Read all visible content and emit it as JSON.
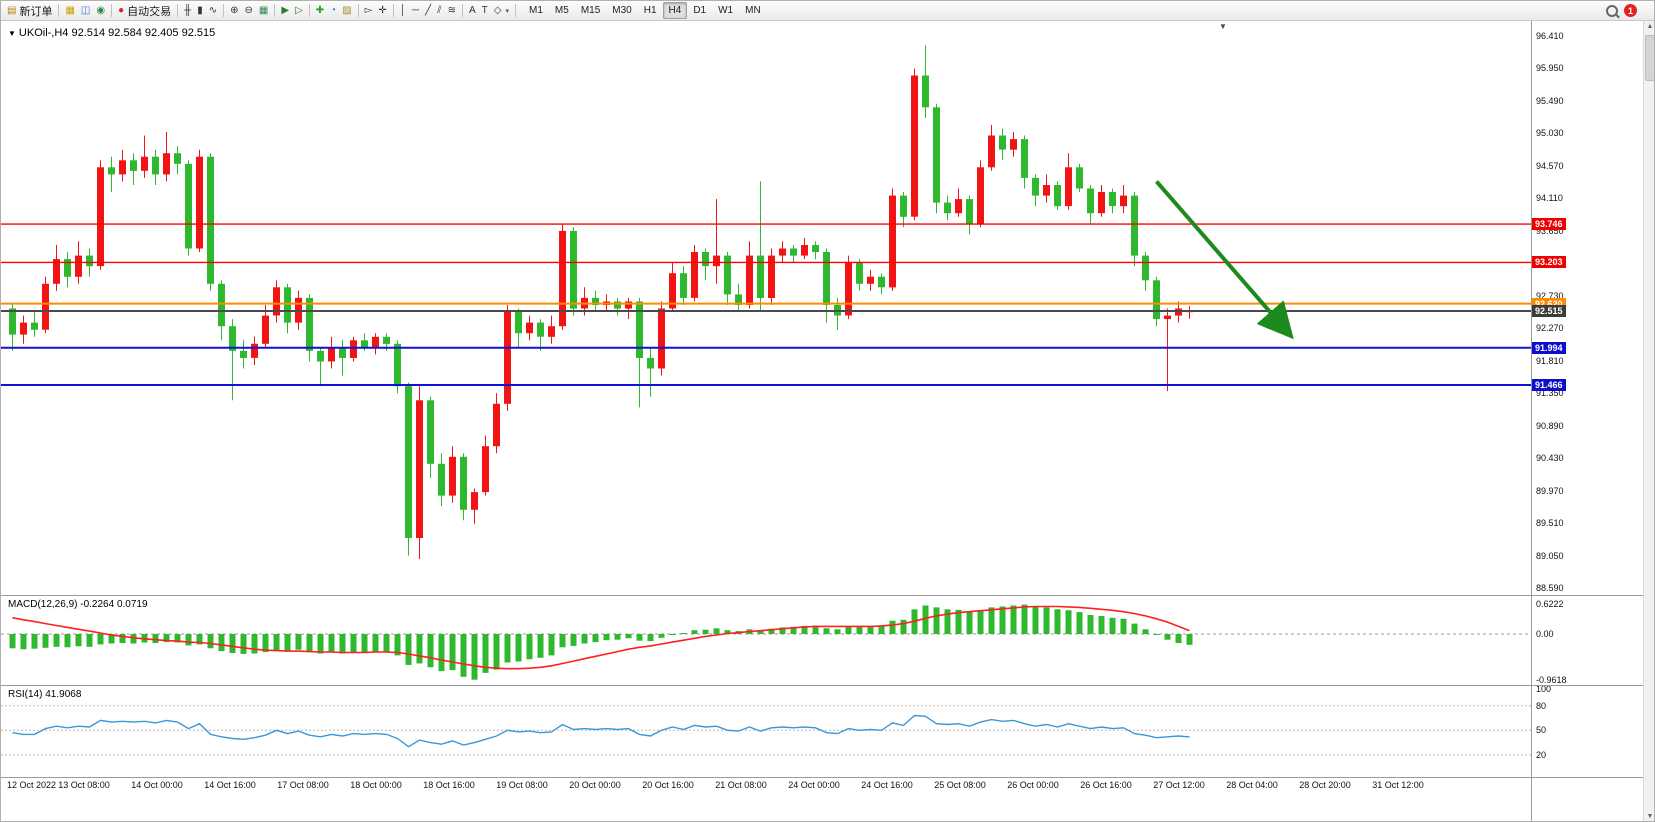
{
  "toolbar": {
    "groups": [
      {
        "name": "orders",
        "items": [
          {
            "name": "new-order",
            "glyph": "▤",
            "glyph_color": "#b8860b",
            "label": "新订单"
          }
        ]
      },
      {
        "name": "windows",
        "items": [
          {
            "name": "market-watch",
            "glyph": "▦",
            "glyph_color": "#c8a000"
          },
          {
            "name": "data-window",
            "glyph": "◫",
            "glyph_color": "#4477cc"
          },
          {
            "name": "navigator",
            "glyph": "◉",
            "glyph_color": "#2a8844"
          }
        ]
      },
      {
        "name": "autotrade",
        "items": [
          {
            "name": "autotrading",
            "glyph": "●",
            "glyph_color": "#dd2222",
            "label": "自动交易"
          }
        ]
      },
      {
        "name": "chart-types",
        "items": [
          {
            "name": "bar-chart-mode",
            "glyph": "╫",
            "glyph_color": "#333333"
          },
          {
            "name": "candlestick-mode",
            "glyph": "▮",
            "glyph_color": "#333333"
          },
          {
            "name": "line-chart-mode",
            "glyph": "∿",
            "glyph_color": "#333333"
          }
        ]
      },
      {
        "name": "zoom",
        "items": [
          {
            "name": "zoom-in",
            "glyph": "⊕",
            "glyph_color": "#333333"
          },
          {
            "name": "zoom-out",
            "glyph": "⊖",
            "glyph_color": "#333333"
          },
          {
            "name": "tile-windows",
            "glyph": "▦",
            "glyph_color": "#338855"
          }
        ]
      },
      {
        "name": "scrolling",
        "items": [
          {
            "name": "auto-scroll",
            "glyph": "▶",
            "glyph_color": "#2a7a2a"
          },
          {
            "name": "chart-shift",
            "glyph": "▷",
            "glyph_color": "#2a7a2a"
          }
        ]
      },
      {
        "name": "insert",
        "items": [
          {
            "name": "indicators",
            "glyph": "✚",
            "glyph_color": "#22aa22"
          },
          {
            "name": "periods",
            "glyph": "◔",
            "glyph_color": "#3366cc"
          },
          {
            "name": "templates",
            "glyph": "▨",
            "glyph_color": "#aa8833"
          }
        ]
      },
      {
        "name": "pointer",
        "items": [
          {
            "name": "cursor",
            "glyph": "▻",
            "glyph_color": "#333333"
          },
          {
            "name": "crosshair",
            "glyph": "✛",
            "glyph_color": "#333333"
          }
        ]
      },
      {
        "name": "draw",
        "items": [
          {
            "name": "vertical-line-tool",
            "glyph": "│",
            "glyph_color": "#333333"
          },
          {
            "name": "horizontal-line-tool",
            "glyph": "─",
            "glyph_color": "#333333"
          },
          {
            "name": "trendline-tool",
            "glyph": "╱",
            "glyph_color": "#333333"
          },
          {
            "name": "channel-tool",
            "glyph": "⫽",
            "glyph_color": "#333333"
          },
          {
            "name": "fibonacci-tool",
            "glyph": "≋",
            "glyph_color": "#333333"
          }
        ]
      },
      {
        "name": "text-tools",
        "items": [
          {
            "name": "text-tool",
            "glyph": "A",
            "glyph_color": "#333333"
          },
          {
            "name": "label-tool",
            "glyph": "T",
            "glyph_color": "#333333"
          },
          {
            "name": "shapes-tool",
            "glyph": "◇",
            "glyph_color": "#333333",
            "caret": true
          }
        ]
      }
    ],
    "timeframes": [
      "M1",
      "M5",
      "M15",
      "M30",
      "H1",
      "H4",
      "D1",
      "W1",
      "MN"
    ],
    "active_timeframe": "H4",
    "notification_count": "1"
  },
  "chart": {
    "title_arrow": "▼",
    "title": "UKOil-,H4  92.514 92.584 92.405 92.515"
  },
  "chart_data": {
    "type": "candlestick",
    "symbol": "UKOil-",
    "period": "H4",
    "ohlc_current": {
      "open": 92.514,
      "high": 92.584,
      "low": 92.405,
      "close": 92.515
    },
    "up_color": "#f01414",
    "down_color": "#2eb82e",
    "price_axis": [
      "96.410",
      "95.950",
      "95.490",
      "95.030",
      "94.570",
      "94.110",
      "93.650",
      "93.190",
      "92.730",
      "92.270",
      "91.810",
      "91.350",
      "90.890",
      "90.430",
      "89.970",
      "89.510",
      "89.050",
      "88.590"
    ],
    "hlines": [
      {
        "label": "93.746",
        "price": 93.746,
        "color": "#ff0000",
        "width": 1.4,
        "marker_bg": "#ef0000"
      },
      {
        "label": "93.203",
        "price": 93.203,
        "color": "#ff0000",
        "width": 1.4,
        "marker_bg": "#ef0000"
      },
      {
        "label": "92.620",
        "price": 92.62,
        "color": "#ff8c00",
        "width": 2,
        "marker_bg": "#ff8c00"
      },
      {
        "label": "92.515",
        "price": 92.515,
        "color": "#4a4a4a",
        "width": 2,
        "marker_bg": "#3c3c3c"
      },
      {
        "label": "91.994",
        "price": 91.994,
        "color": "#1111d6",
        "width": 2,
        "marker_bg": "#0d0dcc"
      },
      {
        "label": "91.466",
        "price": 91.466,
        "color": "#1111d6",
        "width": 2,
        "marker_bg": "#0d0dcc"
      }
    ],
    "trend_arrow": {
      "from_index": 104,
      "from_price": 94.35,
      "to_index": 116,
      "to_price": 92.2,
      "color": "#1e8a1e",
      "width": 4
    },
    "candles": [
      [
        92.55,
        92.62,
        91.95,
        92.18
      ],
      [
        92.18,
        92.45,
        92.05,
        92.35
      ],
      [
        92.35,
        92.5,
        92.15,
        92.25
      ],
      [
        92.25,
        93.0,
        92.2,
        92.9
      ],
      [
        92.9,
        93.45,
        92.8,
        93.25
      ],
      [
        93.25,
        93.35,
        92.85,
        93.0
      ],
      [
        93.0,
        93.5,
        92.9,
        93.3
      ],
      [
        93.3,
        93.4,
        93.0,
        93.15
      ],
      [
        93.15,
        94.65,
        93.1,
        94.55
      ],
      [
        94.55,
        94.7,
        94.2,
        94.45
      ],
      [
        94.45,
        94.8,
        94.35,
        94.65
      ],
      [
        94.65,
        94.75,
        94.3,
        94.5
      ],
      [
        94.5,
        95.0,
        94.4,
        94.7
      ],
      [
        94.7,
        94.8,
        94.3,
        94.45
      ],
      [
        94.45,
        95.05,
        94.35,
        94.75
      ],
      [
        94.75,
        94.85,
        94.45,
        94.6
      ],
      [
        94.6,
        94.65,
        93.3,
        93.4
      ],
      [
        93.4,
        94.8,
        93.35,
        94.7
      ],
      [
        94.7,
        94.75,
        92.8,
        92.9
      ],
      [
        92.9,
        92.95,
        92.1,
        92.3
      ],
      [
        92.3,
        92.4,
        91.25,
        91.95
      ],
      [
        91.95,
        92.1,
        91.7,
        91.85
      ],
      [
        91.85,
        92.15,
        91.75,
        92.05
      ],
      [
        92.05,
        92.6,
        92.0,
        92.45
      ],
      [
        92.45,
        92.95,
        92.35,
        92.85
      ],
      [
        92.85,
        92.9,
        92.2,
        92.35
      ],
      [
        92.35,
        92.8,
        92.25,
        92.7
      ],
      [
        92.7,
        92.75,
        91.8,
        91.95
      ],
      [
        91.95,
        92.0,
        91.45,
        91.8
      ],
      [
        91.8,
        92.15,
        91.7,
        92.0
      ],
      [
        92.0,
        92.1,
        91.6,
        91.85
      ],
      [
        91.85,
        92.15,
        91.8,
        92.1
      ],
      [
        92.1,
        92.2,
        91.95,
        92.0
      ],
      [
        92.0,
        92.2,
        91.9,
        92.15
      ],
      [
        92.15,
        92.2,
        91.95,
        92.05
      ],
      [
        92.05,
        92.1,
        91.35,
        91.45
      ],
      [
        91.45,
        91.5,
        89.05,
        89.3
      ],
      [
        89.3,
        91.45,
        89.0,
        91.25
      ],
      [
        91.25,
        91.3,
        90.15,
        90.35
      ],
      [
        90.35,
        90.5,
        89.75,
        89.9
      ],
      [
        89.9,
        90.6,
        89.8,
        90.45
      ],
      [
        90.45,
        90.5,
        89.55,
        89.7
      ],
      [
        89.7,
        90.0,
        89.5,
        89.95
      ],
      [
        89.95,
        90.75,
        89.9,
        90.6
      ],
      [
        90.6,
        91.35,
        90.5,
        91.2
      ],
      [
        91.2,
        92.6,
        91.1,
        92.5
      ],
      [
        92.5,
        92.55,
        92.0,
        92.2
      ],
      [
        92.2,
        92.45,
        92.1,
        92.35
      ],
      [
        92.35,
        92.4,
        91.95,
        92.15
      ],
      [
        92.15,
        92.45,
        92.05,
        92.3
      ],
      [
        92.3,
        93.75,
        92.25,
        93.65
      ],
      [
        93.65,
        93.7,
        92.45,
        92.55
      ],
      [
        92.55,
        92.85,
        92.45,
        92.7
      ],
      [
        92.7,
        92.8,
        92.5,
        92.6
      ],
      [
        92.6,
        92.75,
        92.5,
        92.65
      ],
      [
        92.65,
        92.7,
        92.45,
        92.55
      ],
      [
        92.55,
        92.7,
        92.4,
        92.65
      ],
      [
        92.65,
        92.7,
        91.15,
        91.85
      ],
      [
        91.85,
        92.0,
        91.3,
        91.7
      ],
      [
        91.7,
        92.65,
        91.6,
        92.55
      ],
      [
        92.55,
        93.2,
        92.5,
        93.05
      ],
      [
        93.05,
        93.15,
        92.6,
        92.7
      ],
      [
        92.7,
        93.45,
        92.65,
        93.35
      ],
      [
        93.35,
        93.4,
        92.95,
        93.15
      ],
      [
        93.15,
        94.1,
        92.9,
        93.3
      ],
      [
        93.3,
        93.35,
        92.6,
        92.75
      ],
      [
        92.75,
        92.9,
        92.5,
        92.6
      ],
      [
        92.6,
        93.5,
        92.55,
        93.3
      ],
      [
        93.3,
        94.35,
        92.5,
        92.7
      ],
      [
        92.7,
        93.4,
        92.6,
        93.3
      ],
      [
        93.3,
        93.5,
        93.2,
        93.4
      ],
      [
        93.4,
        93.45,
        93.2,
        93.3
      ],
      [
        93.3,
        93.55,
        93.25,
        93.45
      ],
      [
        93.45,
        93.5,
        93.25,
        93.35
      ],
      [
        93.35,
        93.4,
        92.35,
        92.6
      ],
      [
        92.6,
        92.7,
        92.25,
        92.45
      ],
      [
        92.45,
        93.3,
        92.4,
        93.2
      ],
      [
        93.2,
        93.25,
        92.8,
        92.9
      ],
      [
        92.9,
        93.1,
        92.8,
        93.0
      ],
      [
        93.0,
        93.05,
        92.75,
        92.85
      ],
      [
        92.85,
        94.25,
        92.8,
        94.15
      ],
      [
        94.15,
        94.2,
        93.7,
        93.85
      ],
      [
        93.85,
        95.95,
        93.8,
        95.85
      ],
      [
        95.85,
        96.28,
        95.25,
        95.4
      ],
      [
        95.4,
        95.45,
        93.9,
        94.05
      ],
      [
        94.05,
        94.15,
        93.8,
        93.9
      ],
      [
        93.9,
        94.25,
        93.85,
        94.1
      ],
      [
        94.1,
        94.15,
        93.6,
        93.75
      ],
      [
        93.75,
        94.65,
        93.7,
        94.55
      ],
      [
        94.55,
        95.15,
        94.5,
        95.0
      ],
      [
        95.0,
        95.1,
        94.65,
        94.8
      ],
      [
        94.8,
        95.05,
        94.7,
        94.95
      ],
      [
        94.95,
        95.0,
        94.25,
        94.4
      ],
      [
        94.4,
        94.45,
        94.0,
        94.15
      ],
      [
        94.15,
        94.45,
        94.05,
        94.3
      ],
      [
        94.3,
        94.35,
        93.95,
        94.0
      ],
      [
        94.0,
        94.75,
        93.95,
        94.55
      ],
      [
        94.55,
        94.6,
        94.2,
        94.25
      ],
      [
        94.25,
        94.3,
        93.75,
        93.9
      ],
      [
        93.9,
        94.3,
        93.85,
        94.2
      ],
      [
        94.2,
        94.25,
        93.9,
        94.0
      ],
      [
        94.0,
        94.3,
        93.9,
        94.15
      ],
      [
        94.15,
        94.2,
        93.15,
        93.3
      ],
      [
        93.3,
        93.35,
        92.8,
        92.95
      ],
      [
        92.95,
        93.0,
        92.3,
        92.4
      ],
      [
        92.4,
        92.55,
        91.38,
        92.45
      ],
      [
        92.45,
        92.65,
        92.35,
        92.55
      ],
      [
        92.514,
        92.584,
        92.405,
        92.515
      ]
    ],
    "macd": {
      "label": "MACD(12,26,9) -0.2264 0.0719",
      "params": [
        12,
        26,
        9
      ],
      "axis": [
        {
          "label": "0.6222",
          "value": 0.6222
        },
        {
          "label": "0.00",
          "value": 0
        },
        {
          "label": "-0.9618",
          "value": -0.9618
        }
      ],
      "bar_color": "#2eb82e",
      "signal_color": "#ff2020",
      "main": [
        -0.3,
        -0.32,
        -0.31,
        -0.29,
        -0.27,
        -0.28,
        -0.26,
        -0.27,
        -0.22,
        -0.2,
        -0.19,
        -0.2,
        -0.18,
        -0.19,
        -0.17,
        -0.18,
        -0.24,
        -0.22,
        -0.3,
        -0.36,
        -0.4,
        -0.42,
        -0.41,
        -0.38,
        -0.34,
        -0.35,
        -0.33,
        -0.38,
        -0.41,
        -0.39,
        -0.41,
        -0.39,
        -0.38,
        -0.37,
        -0.38,
        -0.45,
        -0.65,
        -0.62,
        -0.7,
        -0.78,
        -0.76,
        -0.9,
        -0.9618,
        -0.82,
        -0.75,
        -0.6,
        -0.58,
        -0.53,
        -0.5,
        -0.45,
        -0.28,
        -0.25,
        -0.2,
        -0.17,
        -0.13,
        -0.12,
        -0.09,
        -0.14,
        -0.15,
        -0.08,
        0.0,
        0.02,
        0.08,
        0.09,
        0.12,
        0.08,
        0.06,
        0.1,
        0.08,
        0.11,
        0.14,
        0.15,
        0.17,
        0.18,
        0.12,
        0.1,
        0.15,
        0.15,
        0.16,
        0.16,
        0.28,
        0.3,
        0.52,
        0.6,
        0.56,
        0.52,
        0.51,
        0.47,
        0.5,
        0.56,
        0.58,
        0.6,
        0.62,
        0.58,
        0.56,
        0.52,
        0.5,
        0.46,
        0.4,
        0.38,
        0.34,
        0.32,
        0.22,
        0.1,
        -0.02,
        -0.12,
        -0.19,
        -0.2264
      ],
      "signal": [
        0.34,
        0.3,
        0.26,
        0.22,
        0.18,
        0.14,
        0.1,
        0.06,
        0.02,
        -0.02,
        -0.05,
        -0.08,
        -0.1,
        -0.12,
        -0.14,
        -0.15,
        -0.17,
        -0.18,
        -0.2,
        -0.23,
        -0.26,
        -0.29,
        -0.32,
        -0.34,
        -0.35,
        -0.36,
        -0.36,
        -0.37,
        -0.38,
        -0.38,
        -0.39,
        -0.39,
        -0.39,
        -0.38,
        -0.38,
        -0.39,
        -0.42,
        -0.46,
        -0.5,
        -0.55,
        -0.59,
        -0.63,
        -0.67,
        -0.7,
        -0.72,
        -0.73,
        -0.73,
        -0.72,
        -0.7,
        -0.67,
        -0.62,
        -0.57,
        -0.52,
        -0.47,
        -0.42,
        -0.37,
        -0.32,
        -0.28,
        -0.25,
        -0.21,
        -0.17,
        -0.13,
        -0.09,
        -0.05,
        -0.02,
        0.01,
        0.03,
        0.05,
        0.07,
        0.09,
        0.11,
        0.13,
        0.15,
        0.16,
        0.16,
        0.16,
        0.16,
        0.16,
        0.16,
        0.17,
        0.19,
        0.22,
        0.27,
        0.33,
        0.38,
        0.42,
        0.45,
        0.47,
        0.49,
        0.51,
        0.53,
        0.55,
        0.57,
        0.58,
        0.58,
        0.58,
        0.57,
        0.56,
        0.54,
        0.52,
        0.5,
        0.47,
        0.43,
        0.38,
        0.32,
        0.25,
        0.16,
        0.0719
      ]
    },
    "rsi": {
      "label": "RSI(14) 41.9068",
      "period": 14,
      "current": 41.9068,
      "line_color": "#3a98d9",
      "axis": [
        100,
        80,
        50,
        20
      ],
      "levels": [
        80,
        50,
        20
      ],
      "values": [
        47,
        45,
        45,
        52,
        55,
        53,
        55,
        54,
        62,
        60,
        61,
        60,
        61,
        59,
        62,
        60,
        52,
        58,
        45,
        42,
        40,
        39,
        41,
        44,
        50,
        46,
        49,
        44,
        42,
        45,
        43,
        46,
        45,
        46,
        45,
        40,
        30,
        38,
        35,
        33,
        37,
        32,
        35,
        39,
        43,
        50,
        48,
        49,
        47,
        48,
        57,
        51,
        52,
        51,
        52,
        51,
        52,
        45,
        43,
        50,
        54,
        51,
        56,
        54,
        55,
        50,
        49,
        54,
        49,
        53,
        54,
        53,
        54,
        53,
        47,
        46,
        52,
        50,
        51,
        50,
        59,
        56,
        68,
        67,
        58,
        57,
        58,
        55,
        60,
        63,
        61,
        62,
        58,
        55,
        57,
        54,
        58,
        55,
        52,
        54,
        52,
        53,
        46,
        44,
        41,
        42,
        43,
        41.9
      ]
    },
    "time_labels": [
      "12 Oct 2022",
      "13 Oct 08:00",
      "14 Oct 00:00",
      "14 Oct 16:00",
      "17 Oct 08:00",
      "18 Oct 00:00",
      "18 Oct 16:00",
      "19 Oct 08:00",
      "20 Oct 00:00",
      "20 Oct 16:00",
      "21 Oct 08:00",
      "24 Oct 00:00",
      "24 Oct 16:00",
      "25 Oct 08:00",
      "26 Oct 00:00",
      "26 Oct 16:00",
      "27 Oct 12:00",
      "28 Oct 04:00",
      "28 Oct 20:00",
      "31 Oct 12:00"
    ]
  },
  "scrollbar": {
    "up_glyph": "▲",
    "down_glyph": "▼"
  },
  "shift_marker_glyph": "▼"
}
